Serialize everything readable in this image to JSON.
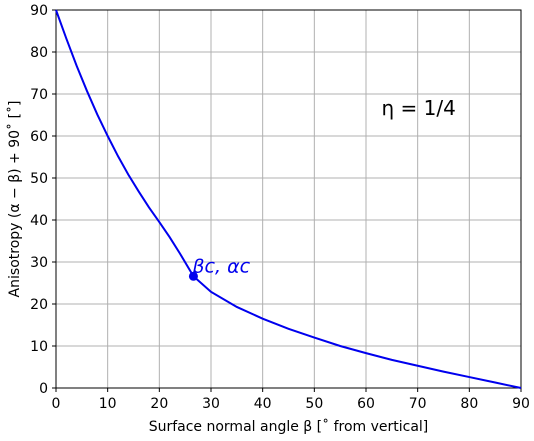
{
  "chart_data": {
    "type": "line",
    "xlabel": "Surface normal angle  β   [˚ from vertical]",
    "ylabel": "Anisotropy  (α − β) + 90˚   [˚]",
    "xlim": [
      0,
      90
    ],
    "ylim": [
      0,
      90
    ],
    "xticks": [
      0,
      10,
      20,
      30,
      40,
      50,
      60,
      70,
      80,
      90
    ],
    "yticks": [
      0,
      10,
      20,
      30,
      40,
      50,
      60,
      70,
      80,
      90
    ],
    "grid": true,
    "series": [
      {
        "color": "#0000ee",
        "x": [
          0,
          2,
          4,
          6,
          8,
          10,
          12,
          14,
          16,
          18,
          20,
          22,
          24,
          26.6,
          30,
          35,
          40,
          45,
          50,
          55,
          60,
          65,
          70,
          75,
          80,
          85,
          90
        ],
        "y": [
          90,
          83.2,
          76.7,
          70.7,
          65.1,
          60.0,
          55.2,
          50.8,
          46.8,
          43.0,
          39.5,
          35.9,
          32.0,
          26.6,
          22.9,
          19.3,
          16.5,
          14.1,
          12.0,
          10.0,
          8.3,
          6.7,
          5.3,
          3.9,
          2.6,
          1.3,
          0
        ]
      }
    ],
    "marker": {
      "x": 26.6,
      "y": 26.6,
      "label": "βc,  αc",
      "color": "#0000ee"
    },
    "annotation": {
      "text": "η = 1/4",
      "x": 63,
      "y": 65
    }
  }
}
